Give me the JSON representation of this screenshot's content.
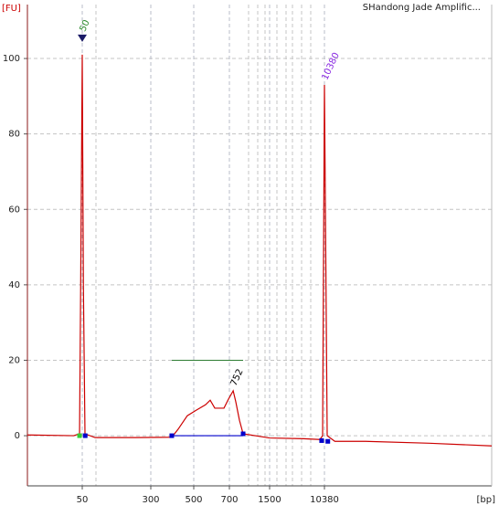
{
  "chart_data": {
    "type": "line",
    "title": "SHandong Jade Amplific...",
    "y_label": "[FU]",
    "x_label": "[bp]",
    "x": [
      12,
      40,
      46.6,
      48,
      50,
      51.5,
      53.7,
      70,
      200,
      385,
      415,
      463,
      513,
      559,
      584,
      610,
      665,
      694,
      752,
      790,
      847,
      908,
      1500,
      5000,
      8830,
      9730,
      10380,
      11440,
      15000,
      44200,
      421000,
      3800000
    ],
    "series": [
      {
        "name": "FU",
        "color": "#cc0000",
        "values": [
          0.2,
          0,
          0.5,
          40,
          101,
          40,
          0.5,
          -0.5,
          -0.5,
          -0.4,
          1.7,
          5.3,
          6.8,
          8.2,
          9.4,
          7.3,
          7.3,
          9.7,
          11.9,
          9,
          4.1,
          0.5,
          -0.6,
          -0.8,
          -1,
          0,
          93,
          0,
          -1.5,
          -1.5,
          -2,
          -2.7
        ]
      }
    ],
    "xlim": [
      12,
      3800000
    ],
    "xticks": [
      50,
      300,
      500,
      700,
      1500,
      10380
    ],
    "ylim": [
      -13.3,
      114.3
    ],
    "yticks": [
      0,
      20,
      40,
      60,
      80,
      100
    ],
    "grid": true,
    "peak_labels": [
      {
        "label": "50",
        "bp": 50,
        "fu": 101,
        "color": "#2e8b2e"
      },
      {
        "label": "752",
        "bp": 752,
        "fu": 11.9,
        "color": "#000000"
      },
      {
        "label": "10380",
        "bp": 10380,
        "fu": 93,
        "color": "#8a2be2"
      }
    ],
    "region": {
      "from": 385,
      "to": 908,
      "fu": 20,
      "color": "#2e7d32",
      "base_color": "#0000cc"
    },
    "markers": [
      {
        "bp": 46.6,
        "fu": 0,
        "color": "#33cc33"
      },
      {
        "bp": 54,
        "fu": 0,
        "color": "#0000cc"
      },
      {
        "bp": 385,
        "fu": 0,
        "color": "#0000cc"
      },
      {
        "bp": 908,
        "fu": 0.5,
        "color": "#0000cc"
      },
      {
        "bp": 9400,
        "fu": -1.3,
        "color": "#0000cc"
      },
      {
        "bp": 11700,
        "fu": -1.5,
        "color": "#0000cc"
      }
    ]
  }
}
